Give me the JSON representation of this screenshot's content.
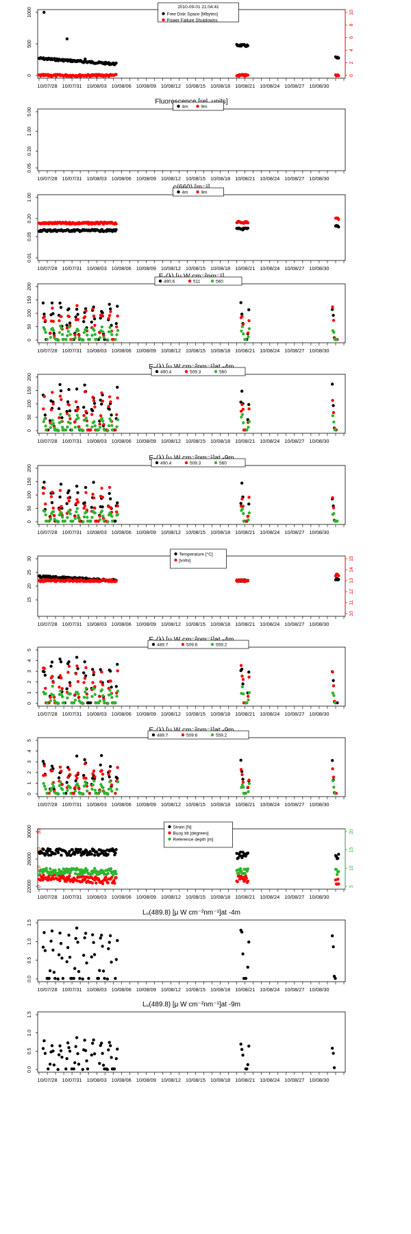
{
  "timestamp": "2010-09-01 21:04:41",
  "x_ticks": [
    "10/07/28",
    "10/07/31",
    "10/08/03",
    "10/08/06",
    "10/08/09",
    "10/08/12",
    "10/08/15",
    "10/08/18",
    "10/08/21",
    "10/08/24",
    "10/08/27",
    "10/08/30"
  ],
  "colors": {
    "black": "#000000",
    "red": "#ff0000",
    "green": "#2db52d"
  },
  "chart_data": [
    {
      "type": "scatter",
      "title": "",
      "ylim": [
        0,
        1000
      ],
      "yticks": [
        0,
        500,
        1000
      ],
      "y2lim": [
        0,
        10
      ],
      "y2ticks": [
        0,
        2,
        4,
        6,
        8,
        10
      ],
      "legend_position": "top-center",
      "series": [
        {
          "name": "Free Disk Space [Mbytes]",
          "color": "#000000",
          "axis": "left",
          "segments": [
            {
              "start": "07/27",
              "end": "08/05",
              "a": 270,
              "b": 180
            },
            {
              "start": "08/20",
              "end": "08/21",
              "a": 480,
              "b": 470
            },
            {
              "start": "09/01",
              "end": "09/01",
              "a": 280,
              "b": 270
            }
          ],
          "outliers": [
            [
              0.6,
              1000
            ],
            [
              3.4,
              580
            ],
            [
              5.6,
              260
            ]
          ]
        },
        {
          "name": "Power Failure Shutdowns",
          "color": "#ff0000",
          "axis": "right",
          "segments": [
            {
              "start": "07/27",
              "end": "08/05",
              "a": 0,
              "b": 0
            },
            {
              "start": "08/20",
              "end": "08/21",
              "a": 0,
              "b": 0
            },
            {
              "start": "09/01",
              "end": "09/01",
              "a": 0,
              "b": 0
            }
          ]
        }
      ]
    },
    {
      "type": "scatter",
      "title": "Fluorescence  [rel. units]",
      "ylim": [
        0.05,
        5
      ],
      "yticks": [
        "0.05",
        "0.20",
        "1.00",
        "5.00"
      ],
      "log": true,
      "legend_position": "top-center",
      "series": [
        {
          "name": "4m",
          "color": "#000000",
          "points": []
        },
        {
          "name": "9m",
          "color": "#ff0000",
          "points": []
        }
      ]
    },
    {
      "type": "scatter",
      "title": "c(660)  [m⁻¹]",
      "ylim": [
        0.01,
        1
      ],
      "yticks": [
        "0.01",
        "0.05",
        "0.20",
        "1.00"
      ],
      "log": true,
      "legend_position": "top-center",
      "series": [
        {
          "name": "4m",
          "color": "#000000",
          "segments": [
            {
              "start": "07/27",
              "end": "08/05",
              "a": 0.08,
              "b": 0.08
            },
            {
              "start": "08/20",
              "end": "08/21",
              "a": 0.09,
              "b": 0.09
            },
            {
              "start": "09/01",
              "end": "09/01",
              "a": 0.11,
              "b": 0.11
            }
          ]
        },
        {
          "name": "9m",
          "color": "#ff0000",
          "segments": [
            {
              "start": "07/27",
              "end": "08/05",
              "a": 0.14,
              "b": 0.14
            },
            {
              "start": "08/20",
              "end": "08/21",
              "a": 0.15,
              "b": 0.15
            },
            {
              "start": "09/01",
              "end": "09/01",
              "a": 0.2,
              "b": 0.2
            }
          ]
        }
      ]
    },
    {
      "type": "scatter",
      "title": "Eₛ(λ)  [μ W cm⁻²nm⁻¹]",
      "ylim": [
        0,
        200
      ],
      "yticks": [
        0,
        50,
        100,
        150,
        200
      ],
      "legend_position": "top-center",
      "pattern": "diurnal",
      "peak_range": [
        100,
        155
      ],
      "series": [
        {
          "name": "490.6",
          "color": "#000000"
        },
        {
          "name": "511",
          "color": "#ff0000"
        },
        {
          "name": "560",
          "color": "#2db52d"
        }
      ]
    },
    {
      "type": "scatter",
      "title": "Eₙ(λ)  [μ W cm⁻²nm⁻¹]at -4m",
      "ylim": [
        0,
        200
      ],
      "yticks": [
        0,
        50,
        100,
        150,
        200
      ],
      "legend_position": "top-center",
      "pattern": "diurnal",
      "peak_range": [
        80,
        180
      ],
      "series": [
        {
          "name": "490.4",
          "color": "#000000"
        },
        {
          "name": "509.3",
          "color": "#ff0000"
        },
        {
          "name": "560",
          "color": "#2db52d"
        }
      ]
    },
    {
      "type": "scatter",
      "title": "Eₙ(λ)  [μ W cm⁻²nm⁻¹]at -9m",
      "ylim": [
        0,
        200
      ],
      "yticks": [
        0,
        50,
        100,
        150,
        200
      ],
      "legend_position": "top-center",
      "pattern": "diurnal",
      "peak_range": [
        70,
        160
      ],
      "series": [
        {
          "name": "490.4",
          "color": "#000000"
        },
        {
          "name": "509.3",
          "color": "#ff0000"
        },
        {
          "name": "560",
          "color": "#2db52d"
        }
      ]
    },
    {
      "type": "scatter",
      "title": "",
      "ylim": [
        10,
        30
      ],
      "yticks": [
        15,
        20,
        25,
        30
      ],
      "y2lim": [
        10,
        15
      ],
      "y2ticks": [
        10,
        11,
        12,
        13,
        14,
        15
      ],
      "legend_position": "top-center",
      "series": [
        {
          "name": "Temperature [°C]",
          "color": "#000000",
          "axis": "left",
          "segments": [
            {
              "start": "07/27",
              "end": "08/05",
              "a": 23.5,
              "b": 22
            },
            {
              "start": "08/20",
              "end": "08/21",
              "a": 22,
              "b": 22
            },
            {
              "start": "09/01",
              "end": "09/01",
              "a": 22.5,
              "b": 22.5
            }
          ]
        },
        {
          "name": "[volts]",
          "color": "#ff0000",
          "axis": "right",
          "segments": [
            {
              "start": "07/27",
              "end": "08/05",
              "a": 13,
              "b": 13
            },
            {
              "start": "08/20",
              "end": "08/21",
              "a": 13,
              "b": 13
            },
            {
              "start": "09/01",
              "end": "09/01",
              "a": 13.5,
              "b": 13.5
            }
          ]
        }
      ]
    },
    {
      "type": "scatter",
      "title": "Eᵤ(λ)  [μ W cm⁻²nm⁻¹]at -4m",
      "ylim": [
        0,
        5
      ],
      "yticks": [
        0,
        1,
        2,
        3,
        4,
        5
      ],
      "legend_position": "top-center",
      "pattern": "diurnal",
      "peak_range": [
        2.5,
        4.6
      ],
      "series": [
        {
          "name": "489.7",
          "color": "#000000"
        },
        {
          "name": "509.6",
          "color": "#ff0000"
        },
        {
          "name": "559.2",
          "color": "#2db52d"
        }
      ]
    },
    {
      "type": "scatter",
      "title": "Eᵤ(λ)  [μ W cm⁻²nm⁻¹]at -9m",
      "ylim": [
        0,
        5
      ],
      "yticks": [
        0,
        1,
        2,
        3,
        4,
        5
      ],
      "legend_position": "top-center",
      "pattern": "diurnal",
      "peak_range": [
        1.5,
        3.6
      ],
      "series": [
        {
          "name": "489.7",
          "color": "#000000"
        },
        {
          "name": "509.6",
          "color": "#ff0000"
        },
        {
          "name": "559.2",
          "color": "#2db52d"
        }
      ]
    },
    {
      "type": "scatter",
      "title": "",
      "ylim": [
        22000,
        30000
      ],
      "yticks": [
        22000,
        26000,
        30000
      ],
      "y_inner_ticks": [
        0,
        10,
        20,
        30
      ],
      "y2lim": [
        5,
        20
      ],
      "y2ticks": [
        5,
        10,
        15,
        20
      ],
      "legend_position": "top-center",
      "series": [
        {
          "name": "Strain [N]",
          "color": "#000000",
          "axis": "left",
          "segments": [
            {
              "start": "07/27",
              "end": "08/05",
              "a": 27000,
              "b": 27000
            },
            {
              "start": "08/20",
              "end": "08/21",
              "a": 26500,
              "b": 26800
            },
            {
              "start": "09/01",
              "end": "09/01",
              "a": 26500,
              "b": 26500
            }
          ]
        },
        {
          "name": "Buoy tilt [degrees]",
          "color": "#ff0000",
          "axis": "inner",
          "segments": [
            {
              "start": "07/27",
              "end": "08/05",
              "a": 5,
              "b": 3
            },
            {
              "start": "08/20",
              "end": "08/21",
              "a": 4,
              "b": 4
            },
            {
              "start": "09/01",
              "end": "09/01",
              "a": 3,
              "b": 3
            }
          ]
        },
        {
          "name": "Reference depth [m]",
          "color": "#2db52d",
          "axis": "right",
          "segments": [
            {
              "start": "07/27",
              "end": "08/05",
              "a": 9,
              "b": 9
            },
            {
              "start": "08/20",
              "end": "08/21",
              "a": 9,
              "b": 9
            },
            {
              "start": "09/01",
              "end": "09/01",
              "a": 9,
              "b": 9
            }
          ]
        }
      ]
    },
    {
      "type": "scatter",
      "title": "Lᵤ(489.8)  [μ W cm⁻²nm⁻¹]at -4m",
      "ylim": [
        0,
        1.5
      ],
      "yticks": [
        "0.0",
        "0.5",
        "1.0",
        "1.5"
      ],
      "pattern": "diurnal",
      "peak_range": [
        0.9,
        1.45
      ],
      "series": [
        {
          "name": "",
          "color": "#000000"
        }
      ]
    },
    {
      "type": "scatter",
      "title": "Lᵤ(489.8)  [μ W cm⁻²nm⁻¹]at -9m",
      "ylim": [
        0,
        1.5
      ],
      "yticks": [
        "0.0",
        "0.5",
        "1.0",
        "1.5"
      ],
      "pattern": "diurnal",
      "peak_range": [
        0.55,
        0.9
      ],
      "series": [
        {
          "name": "",
          "color": "#000000"
        }
      ]
    }
  ]
}
